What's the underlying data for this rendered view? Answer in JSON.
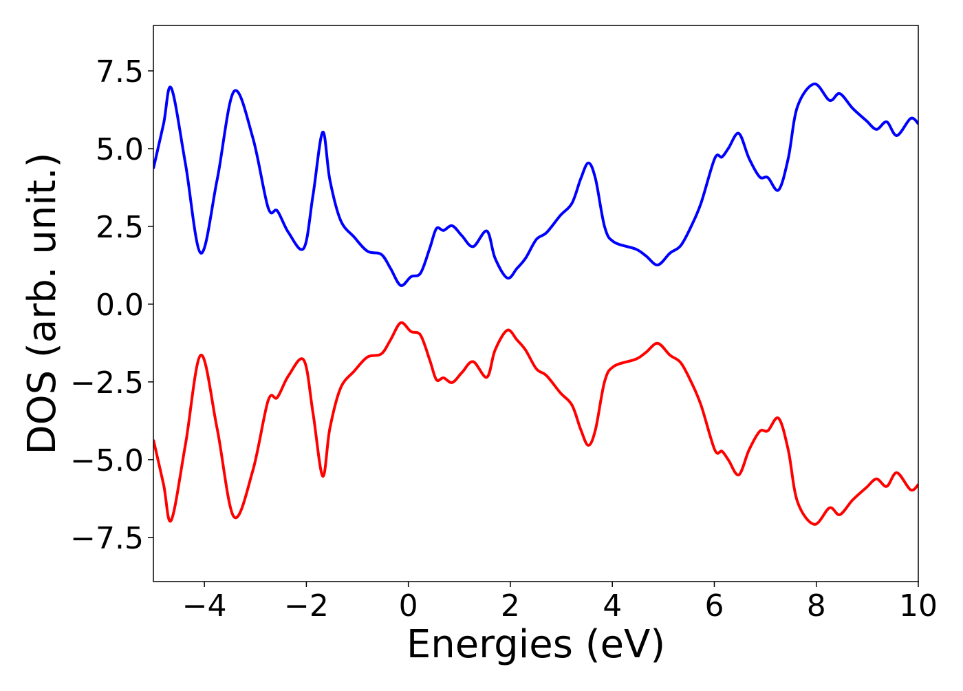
{
  "chart_data": {
    "type": "line",
    "xlabel": "Energies (eV)",
    "ylabel": "DOS (arb. unit.)",
    "x": [
      -5,
      -4.8,
      -4.65,
      -4.37,
      -4.07,
      -3.75,
      -3.42,
      -3.05,
      -2.75,
      -2.57,
      -2.35,
      -2.05,
      -1.87,
      -1.68,
      -1.54,
      -1.33,
      -1.06,
      -0.8,
      -0.53,
      -0.35,
      -0.15,
      0.05,
      0.24,
      0.42,
      0.55,
      0.69,
      0.86,
      1.05,
      1.27,
      1.54,
      1.7,
      1.94,
      2.13,
      2.3,
      2.51,
      2.71,
      2.98,
      3.21,
      3.38,
      3.53,
      3.67,
      3.85,
      4.03,
      4.46,
      4.66,
      4.89,
      5.13,
      5.34,
      5.54,
      5.74,
      6.01,
      6.15,
      6.28,
      6.48,
      6.68,
      6.89,
      7.05,
      7.26,
      7.45,
      7.63,
      7.96,
      8.26,
      8.46,
      8.71,
      8.98,
      9.18,
      9.38,
      9.58,
      9.85,
      10.0
    ],
    "series": [
      {
        "color": "#0000ff",
        "values": [
          4.36,
          5.8,
          6.95,
          4.5,
          1.64,
          4.0,
          6.84,
          5.35,
          3.1,
          3.0,
          2.3,
          1.8,
          3.5,
          5.53,
          4.0,
          2.7,
          2.15,
          1.7,
          1.6,
          1.15,
          0.6,
          0.88,
          1.0,
          1.8,
          2.43,
          2.37,
          2.52,
          2.2,
          1.85,
          2.35,
          1.48,
          0.84,
          1.15,
          1.48,
          2.08,
          2.3,
          2.85,
          3.25,
          4.03,
          4.54,
          4.03,
          2.48,
          2.0,
          1.77,
          1.55,
          1.26,
          1.64,
          1.88,
          2.48,
          3.25,
          4.69,
          4.73,
          5.02,
          5.49,
          4.69,
          4.09,
          4.07,
          3.67,
          4.69,
          6.35,
          7.08,
          6.55,
          6.77,
          6.3,
          5.9,
          5.62,
          5.86,
          5.42,
          5.97,
          5.8
        ]
      },
      {
        "color": "#ff0000",
        "values": [
          -4.36,
          -5.8,
          -6.95,
          -4.5,
          -1.64,
          -4.0,
          -6.84,
          -5.35,
          -3.1,
          -3.0,
          -2.3,
          -1.8,
          -3.5,
          -5.53,
          -4.0,
          -2.7,
          -2.15,
          -1.7,
          -1.6,
          -1.15,
          -0.6,
          -0.88,
          -1.0,
          -1.8,
          -2.43,
          -2.37,
          -2.52,
          -2.2,
          -1.85,
          -2.35,
          -1.48,
          -0.84,
          -1.15,
          -1.48,
          -2.08,
          -2.3,
          -2.85,
          -3.25,
          -4.03,
          -4.54,
          -4.03,
          -2.48,
          -2.0,
          -1.77,
          -1.55,
          -1.26,
          -1.64,
          -1.88,
          -2.48,
          -3.25,
          -4.69,
          -4.73,
          -5.02,
          -5.49,
          -4.69,
          -4.09,
          -4.07,
          -3.67,
          -4.69,
          -6.35,
          -7.08,
          -6.55,
          -6.77,
          -6.3,
          -5.9,
          -5.62,
          -5.86,
          -5.42,
          -5.97,
          -5.8
        ]
      }
    ],
    "xlim": [
      -5,
      10
    ],
    "xticks": [
      {
        "value": -4,
        "label": "−4"
      },
      {
        "value": -2,
        "label": "−2"
      },
      0,
      2,
      4,
      6,
      8,
      10
    ],
    "ylim": [
      -8.92,
      8.96
    ],
    "yticks": [
      {
        "value": -7.5,
        "label": "−7.5"
      },
      {
        "value": -5,
        "label": "−5.0"
      },
      {
        "value": -2.5,
        "label": "−2.5"
      },
      {
        "value": 0,
        "label": "0.0"
      },
      2.5,
      {
        "value": 5,
        "label": "5.0"
      },
      7.5
    ],
    "grid": false
  }
}
